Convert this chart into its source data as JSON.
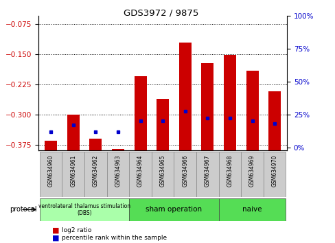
{
  "title": "GDS3972 / 9875",
  "samples": [
    "GSM634960",
    "GSM634961",
    "GSM634962",
    "GSM634963",
    "GSM634964",
    "GSM634965",
    "GSM634966",
    "GSM634967",
    "GSM634968",
    "GSM634969",
    "GSM634970"
  ],
  "log2_ratio": [
    -0.365,
    -0.3,
    -0.36,
    -0.385,
    -0.205,
    -0.262,
    -0.122,
    -0.172,
    -0.152,
    -0.192,
    -0.242
  ],
  "percentile_rank": [
    12,
    17,
    12,
    12,
    20,
    20,
    27,
    22,
    22,
    20,
    18
  ],
  "ylim_left": [
    -0.39,
    -0.055
  ],
  "ylim_right": [
    -2.167,
    97.833
  ],
  "yticks_left": [
    -0.375,
    -0.3,
    -0.225,
    -0.15,
    -0.075
  ],
  "yticks_right": [
    0,
    25,
    50,
    75,
    100
  ],
  "bar_color": "#cc0000",
  "dot_color": "#0000cc",
  "bar_width": 0.55,
  "left_label_color": "#cc0000",
  "right_label_color": "#0000cc",
  "protocol_groups": [
    {
      "label": "ventrolateral thalamus stimulation\n(DBS)",
      "start": 0,
      "end": 3,
      "color": "#aaffaa"
    },
    {
      "label": "sham operation",
      "start": 4,
      "end": 7,
      "color": "#55dd55"
    },
    {
      "label": "naive",
      "start": 8,
      "end": 10,
      "color": "#55dd55"
    }
  ]
}
